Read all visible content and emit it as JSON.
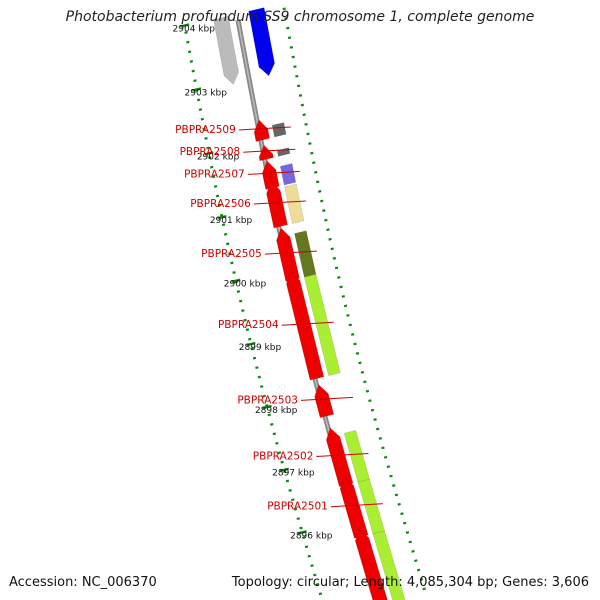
{
  "title": "Photobacterium profundum SS9 chromosome 1, complete genome",
  "footer": {
    "accession": "Accession: NC_006370",
    "summary": "Topology: circular; Length: 4,085,304 bp; Genes: 3,606"
  },
  "colors": {
    "gene_red": "#ee0000",
    "backbone": "#888888",
    "tick_green": "#118811",
    "label_red": "#cc0000"
  },
  "ruler": {
    "ticks": [
      "2904 kbp",
      "2903 kbp",
      "2902 kbp",
      "2901 kbp",
      "2900 kbp",
      "2899 kbp",
      "2898 kbp",
      "2897 kbp",
      "2896 kbp"
    ]
  },
  "genes": [
    {
      "name": "PBPRA2509",
      "start": 0.185,
      "end": 0.205,
      "color": "#666666"
    },
    {
      "name": "PBPRA2508",
      "start": 0.228,
      "end": 0.238,
      "color": "#666666"
    },
    {
      "name": "PBPRA2507",
      "start": 0.255,
      "end": 0.287,
      "color": "#7766dd"
    },
    {
      "name": "PBPRA2506",
      "start": 0.29,
      "end": 0.353,
      "color": "#eedd99"
    },
    {
      "name": "PBPRA2505",
      "start": 0.37,
      "end": 0.445,
      "color": "#667722"
    },
    {
      "name": "PBPRA2504",
      "start": 0.445,
      "end": 0.615,
      "color": "#aaee33"
    },
    {
      "name": "PBPRA2503",
      "start": 0.64,
      "end": 0.68,
      "color": "#ffffff"
    },
    {
      "name": "PBPRA2502",
      "start": 0.715,
      "end": 0.8,
      "color": "#aaee33"
    },
    {
      "name": "PBPRA2501",
      "start": 0.8,
      "end": 0.89,
      "color": "#aaee33"
    }
  ]
}
